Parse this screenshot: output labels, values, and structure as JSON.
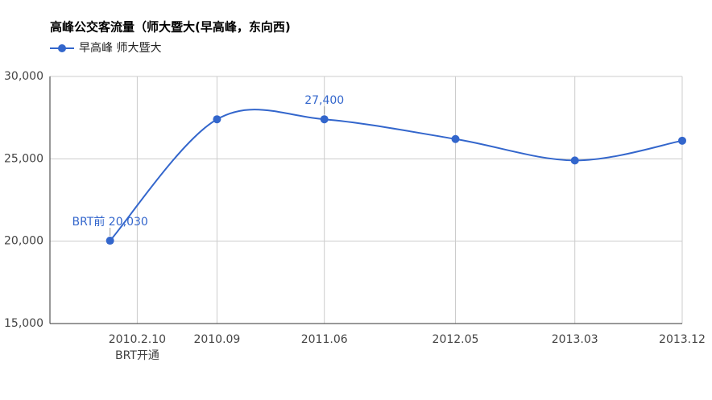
{
  "chart_data": {
    "type": "line",
    "title": "高峰公交客流量（师大暨大(早高峰，东向西)",
    "x": [
      2009.92,
      2010.667,
      2011.417,
      2012.333,
      2013.167,
      2013.917
    ],
    "series": [
      {
        "name": "早高峰 师大暨大",
        "color": "#3366cc",
        "values": [
          20030,
          27400,
          27400,
          26200,
          24900,
          26100
        ],
        "value_labels": [
          "BRT前 20,030",
          null,
          "27,400",
          null,
          null,
          null
        ]
      }
    ],
    "xlim": [
      2009.5,
      2013.917
    ],
    "xticks": [
      {
        "value": 2010.11,
        "label": "2010.2.10"
      },
      {
        "value": 2010.667,
        "label": "2010.09"
      },
      {
        "value": 2011.417,
        "label": "2011.06"
      },
      {
        "value": 2012.333,
        "label": "2012.05"
      },
      {
        "value": 2013.167,
        "label": "2013.03"
      },
      {
        "value": 2013.917,
        "label": "2013.12"
      }
    ],
    "x_annotation": "BRT开通",
    "ylim": [
      15000,
      30000
    ],
    "yticks": [
      {
        "value": 15000,
        "label": "15,000"
      },
      {
        "value": 20000,
        "label": "20,000"
      },
      {
        "value": 25000,
        "label": "25,000"
      },
      {
        "value": 30000,
        "label": "30,000"
      }
    ],
    "grid": true,
    "legend": "top"
  }
}
